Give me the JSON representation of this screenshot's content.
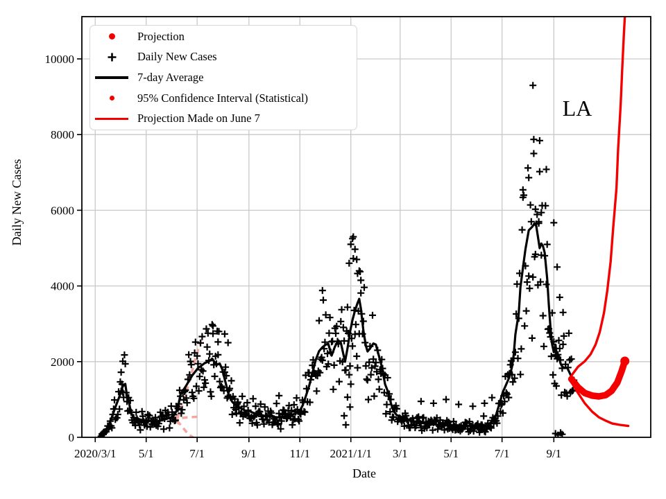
{
  "page": {
    "background": "#ffffff"
  },
  "legend": {
    "items": [
      {
        "label": "Projection",
        "marker": "red-dot-large"
      },
      {
        "label": "Daily New Cases",
        "marker": "black-plus"
      },
      {
        "label": "7-day Average",
        "marker": "black-line"
      },
      {
        "label": "95% Confidence Interval (Statistical)",
        "marker": "red-dot-small"
      },
      {
        "label": "Projection Made on June 7",
        "marker": "red-line"
      }
    ]
  },
  "chart_data": {
    "type": "line",
    "title": "",
    "xlabel": "Date",
    "ylabel": "Daily New Cases",
    "annotation": {
      "text": "LA",
      "day": 577,
      "value": 8700
    },
    "legend_position": "upper left",
    "grid": true,
    "colors": {
      "daily_cases": "#000000",
      "seven_day_average": "#000000",
      "projection": "#f40000",
      "ci_2020_fan": "#f5a5a0",
      "gridline": "#c9c9c9",
      "spine": "#000000"
    },
    "x_axis": {
      "units": "days since 2020/3/1",
      "min_day": -16,
      "max_day": 665,
      "ticks": [
        {
          "day": 0,
          "label": "2020/3/1"
        },
        {
          "day": 61,
          "label": "5/1"
        },
        {
          "day": 122,
          "label": "7/1"
        },
        {
          "day": 184,
          "label": "9/1"
        },
        {
          "day": 245,
          "label": "11/1"
        },
        {
          "day": 306,
          "label": "2021/1/1"
        },
        {
          "day": 365,
          "label": "3/1"
        },
        {
          "day": 426,
          "label": "5/1"
        },
        {
          "day": 487,
          "label": "7/1"
        },
        {
          "day": 549,
          "label": "9/1"
        }
      ]
    },
    "y_axis": {
      "min": 0,
      "max": 11117,
      "ticks": [
        0,
        2000,
        4000,
        6000,
        8000,
        10000
      ]
    },
    "series": {
      "seven_day_average": [
        [
          5,
          30
        ],
        [
          9,
          90
        ],
        [
          13,
          200
        ],
        [
          17,
          360
        ],
        [
          21,
          600
        ],
        [
          25,
          850
        ],
        [
          29,
          1080
        ],
        [
          31,
          1225
        ],
        [
          33,
          1350
        ],
        [
          36,
          1410
        ],
        [
          38,
          1100
        ],
        [
          41,
          860
        ],
        [
          43,
          640
        ],
        [
          47,
          494
        ],
        [
          51,
          440
        ],
        [
          56,
          440
        ],
        [
          61,
          455
        ],
        [
          66,
          440
        ],
        [
          71,
          420
        ],
        [
          76,
          430
        ],
        [
          81,
          460
        ],
        [
          86,
          490
        ],
        [
          91,
          530
        ],
        [
          95,
          600
        ],
        [
          99,
          780
        ],
        [
          102,
          1130
        ],
        [
          109,
          1370
        ],
        [
          116,
          1630
        ],
        [
          123,
          1830
        ],
        [
          131,
          1960
        ],
        [
          137,
          2020
        ],
        [
          140,
          2080
        ],
        [
          143,
          1980
        ],
        [
          146,
          1920
        ],
        [
          149,
          1950
        ],
        [
          152,
          1800
        ],
        [
          156,
          1450
        ],
        [
          160,
          1100
        ],
        [
          164,
          940
        ],
        [
          169,
          830
        ],
        [
          175,
          760
        ],
        [
          180,
          700
        ],
        [
          184,
          700
        ],
        [
          190,
          640
        ],
        [
          197,
          600
        ],
        [
          204,
          560
        ],
        [
          211,
          545
        ],
        [
          218,
          530
        ],
        [
          225,
          540
        ],
        [
          232,
          565
        ],
        [
          239,
          625
        ],
        [
          245,
          700
        ],
        [
          248,
          830
        ],
        [
          252,
          1080
        ],
        [
          256,
          1350
        ],
        [
          260,
          1700
        ],
        [
          264,
          2050
        ],
        [
          268,
          2280
        ],
        [
          272,
          2380
        ],
        [
          276,
          2450
        ],
        [
          279,
          2470
        ],
        [
          283,
          2160
        ],
        [
          287,
          2400
        ],
        [
          291,
          2560
        ],
        [
          294,
          2500
        ],
        [
          296,
          2300
        ],
        [
          299,
          2000
        ],
        [
          302,
          2350
        ],
        [
          305,
          2780
        ],
        [
          308,
          3100
        ],
        [
          311,
          3350
        ],
        [
          314,
          3550
        ],
        [
          316,
          3660
        ],
        [
          318,
          3400
        ],
        [
          321,
          2820
        ],
        [
          324,
          2420
        ],
        [
          326,
          2270
        ],
        [
          329,
          2350
        ],
        [
          333,
          2480
        ],
        [
          336,
          2450
        ],
        [
          339,
          2200
        ],
        [
          343,
          1870
        ],
        [
          347,
          1400
        ],
        [
          350,
          1230
        ],
        [
          354,
          900
        ],
        [
          357,
          700
        ],
        [
          361,
          585
        ],
        [
          366,
          540
        ],
        [
          372,
          470
        ],
        [
          380,
          420
        ],
        [
          390,
          380
        ],
        [
          400,
          355
        ],
        [
          410,
          335
        ],
        [
          420,
          330
        ],
        [
          430,
          320
        ],
        [
          440,
          310
        ],
        [
          450,
          300
        ],
        [
          458,
          295
        ],
        [
          465,
          315
        ],
        [
          470,
          330
        ],
        [
          475,
          420
        ],
        [
          480,
          600
        ],
        [
          484,
          900
        ],
        [
          488,
          1200
        ],
        [
          492,
          1400
        ],
        [
          496,
          1600
        ],
        [
          499,
          1870
        ],
        [
          501,
          2180
        ],
        [
          503,
          2720
        ],
        [
          507,
          3290
        ],
        [
          509,
          3970
        ],
        [
          512,
          4480
        ],
        [
          515,
          4970
        ],
        [
          519,
          5470
        ],
        [
          523,
          5560
        ],
        [
          526,
          5650
        ],
        [
          528,
          5580
        ],
        [
          530,
          5300
        ],
        [
          532,
          5000
        ],
        [
          534,
          5120
        ],
        [
          536,
          5050
        ],
        [
          538,
          4880
        ],
        [
          541,
          4200
        ],
        [
          543,
          3500
        ],
        [
          545,
          2900
        ],
        [
          547,
          2450
        ],
        [
          549,
          2250
        ],
        [
          551,
          2450
        ],
        [
          553,
          2100
        ],
        [
          555,
          2160
        ],
        [
          557,
          1950
        ],
        [
          559,
          1870
        ],
        [
          562,
          1830
        ],
        [
          565,
          1840
        ],
        [
          568,
          1700
        ],
        [
          571,
          1560
        ]
      ],
      "projection_median": [
        [
          570,
          1540
        ],
        [
          578,
          1320
        ],
        [
          586,
          1170
        ],
        [
          595,
          1100
        ],
        [
          603,
          1080
        ],
        [
          611,
          1115
        ],
        [
          618,
          1225
        ],
        [
          625,
          1445
        ],
        [
          630,
          1740
        ],
        [
          634,
          2015
        ]
      ],
      "projection_june7_upper": [
        [
          570,
          1630
        ],
        [
          578,
          1865
        ],
        [
          586,
          2010
        ],
        [
          593,
          2195
        ],
        [
          599,
          2450
        ],
        [
          604,
          2780
        ],
        [
          609,
          3290
        ],
        [
          613,
          3880
        ],
        [
          617,
          4645
        ],
        [
          620,
          5520
        ],
        [
          624,
          6580
        ],
        [
          626,
          7625
        ],
        [
          629,
          8810
        ],
        [
          631,
          9820
        ],
        [
          633,
          10730
        ],
        [
          635,
          11500
        ]
      ],
      "projection_june7_lower": [
        [
          570,
          1460
        ],
        [
          578,
          1170
        ],
        [
          586,
          900
        ],
        [
          595,
          675
        ],
        [
          603,
          530
        ],
        [
          611,
          440
        ],
        [
          619,
          365
        ],
        [
          628,
          330
        ],
        [
          638,
          300
        ]
      ],
      "ci2020_upper": [
        [
          98,
          476
        ],
        [
          104,
          842
        ],
        [
          109,
          1190
        ],
        [
          114,
          1575
        ],
        [
          119,
          2000
        ],
        [
          124,
          2400
        ],
        [
          128,
          2640
        ]
      ],
      "ci2020_mid": [
        [
          104,
          513
        ],
        [
          112,
          530
        ],
        [
          120,
          540
        ],
        [
          127,
          550
        ]
      ],
      "ci2020_lower": [
        [
          98,
          440
        ],
        [
          105,
          256
        ],
        [
          111,
          92
        ],
        [
          117,
          0
        ],
        [
          121,
          -80
        ]
      ],
      "ci2020_arrow": [
        [
          100.5,
          604
        ],
        [
          94,
          476
        ],
        [
          100.5,
          348
        ]
      ]
    },
    "scatter": {
      "description": "daily new cases, plus markers",
      "outliers": [
        [
          31,
          1720
        ],
        [
          33,
          2010
        ],
        [
          141,
          2740
        ],
        [
          147,
          2520
        ],
        [
          155,
          2730
        ],
        [
          159,
          2500
        ],
        [
          220,
          1100
        ],
        [
          272,
          3880
        ],
        [
          298,
          570
        ],
        [
          300,
          330
        ],
        [
          302,
          1060
        ],
        [
          304,
          4600
        ],
        [
          305,
          800
        ],
        [
          306,
          5100
        ],
        [
          308,
          5250
        ],
        [
          309,
          5300
        ],
        [
          311,
          4970
        ],
        [
          313,
          4700
        ],
        [
          314,
          4330
        ],
        [
          316,
          4400
        ],
        [
          318,
          4150
        ],
        [
          390,
          950
        ],
        [
          405,
          900
        ],
        [
          420,
          1000
        ],
        [
          435,
          870
        ],
        [
          452,
          820
        ],
        [
          466,
          900
        ],
        [
          475,
          1050
        ],
        [
          512,
          6340
        ],
        [
          519,
          6860
        ],
        [
          524,
          9300
        ],
        [
          525,
          7500
        ],
        [
          527,
          6030
        ],
        [
          531,
          5700
        ],
        [
          532,
          7840
        ],
        [
          534,
          5940
        ],
        [
          540,
          7080
        ],
        [
          549,
          5670
        ],
        [
          551,
          100
        ],
        [
          553,
          4500
        ],
        [
          554,
          60
        ],
        [
          556,
          3700
        ],
        [
          557,
          120
        ],
        [
          559,
          80
        ],
        [
          560,
          3300
        ]
      ],
      "generator": {
        "start_day": 7,
        "end_day": 573,
        "seed": 1337,
        "weekday_factors": [
          1.15,
          1.08,
          1.03,
          0.97,
          0.9,
          0.68,
          0.82
        ],
        "noise_min": 0.62,
        "noise_span": 0.76,
        "spike_prob": 0.05,
        "spike_mult": 1.3,
        "abs_jitter": 40
      }
    }
  }
}
